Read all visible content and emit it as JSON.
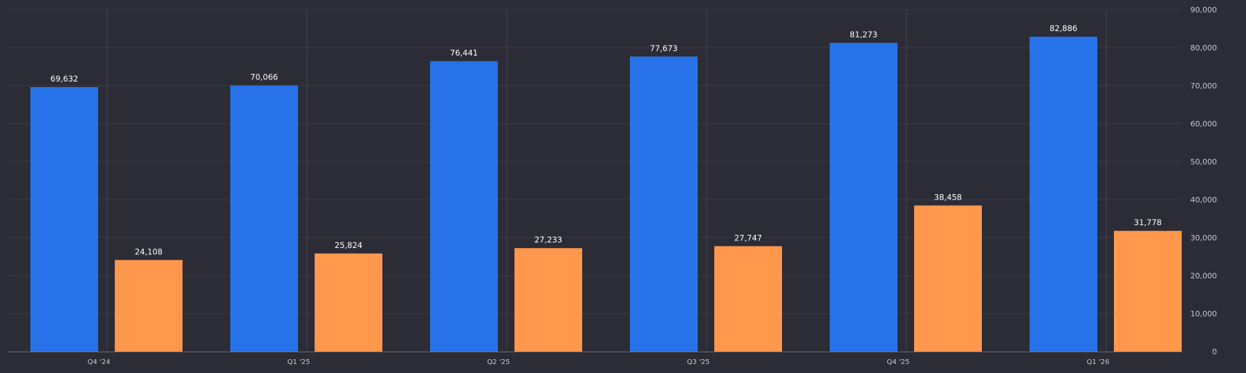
{
  "chart_data": {
    "type": "bar",
    "categories": [
      "Q4 '24",
      "Q1 '25",
      "Q2 '25",
      "Q3 '25",
      "Q4 '25",
      "Q1 '26"
    ],
    "series": [
      {
        "values": [
          69632,
          70066,
          76441,
          77673,
          81273,
          82886
        ],
        "labels": [
          "69,632",
          "70,066",
          "76,441",
          "77,673",
          "81,273",
          "82,886"
        ],
        "color": "#2772e8"
      },
      {
        "values": [
          24108,
          25824,
          27233,
          27747,
          38458,
          31778
        ],
        "labels": [
          "24,108",
          "25,824",
          "27,233",
          "27,747",
          "38,458",
          "31,778"
        ],
        "color": "#ff974d"
      }
    ],
    "ylim": [
      0,
      90000
    ],
    "yticks": [
      0,
      10000,
      20000,
      30000,
      40000,
      50000,
      60000,
      70000,
      80000,
      90000
    ],
    "ytick_labels": [
      "0",
      "10,000",
      "20,000",
      "30,000",
      "40,000",
      "50,000",
      "60,000",
      "70,000",
      "80,000",
      "90,000"
    ],
    "y_axis_side": "right",
    "grid": true,
    "legend": false,
    "background": "#2b2c35"
  }
}
